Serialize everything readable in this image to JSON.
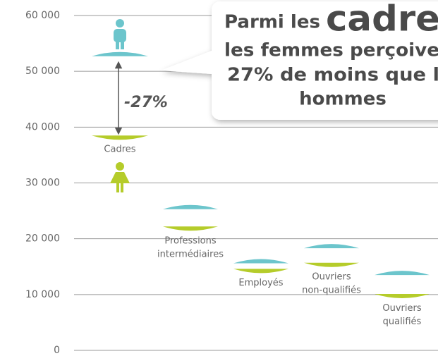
{
  "chart_data": {
    "type": "lens",
    "categories": [
      "Cadres",
      "Professions intermédiaires",
      "Employés",
      "Ouvriers non-qualifiés",
      "Ouvriers qualifiés"
    ],
    "series": [
      {
        "color": "#6cc5cc",
        "values": [
          52700,
          25300,
          15600,
          18300,
          13500
        ]
      },
      {
        "color": "#b5cc2a",
        "values": [
          38500,
          22200,
          14600,
          15700,
          10100
        ]
      }
    ],
    "ylim": [
      0,
      60000
    ],
    "yticks": [
      {
        "value": 0,
        "label": "0"
      },
      {
        "value": 10000,
        "label": "10 000"
      },
      {
        "value": 20000,
        "label": "20 000"
      },
      {
        "value": 30000,
        "label": "30 000"
      },
      {
        "value": 40000,
        "label": "40 000"
      },
      {
        "value": 50000,
        "label": "50 000"
      },
      {
        "value": 60000,
        "label": "60 000"
      }
    ],
    "grid": true,
    "annotation": "-27%",
    "callout": {
      "line1a": "Parmi les",
      "line1b": "cadre",
      "line2": "les femmes perçoive",
      "line3": "27% de moins que l",
      "line4": "hommes"
    }
  }
}
